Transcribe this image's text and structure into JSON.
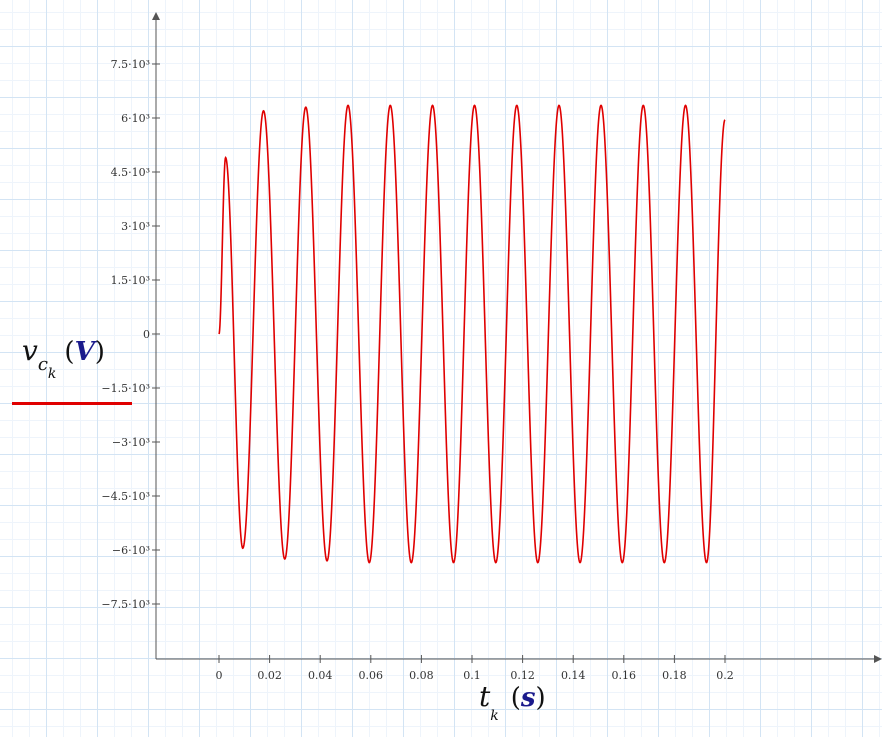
{
  "chart_data": {
    "type": "line",
    "xlabel": {
      "var": "t",
      "sub": "k",
      "unit": "s"
    },
    "ylabel": {
      "var": "v",
      "sub1": "c",
      "sub2": "k",
      "unit": "V"
    },
    "xlim": [
      -0.02,
      0.22
    ],
    "ylim": [
      -9000,
      9000
    ],
    "x_ticks": [
      0,
      0.02,
      0.04,
      0.06,
      0.08,
      0.1,
      0.12,
      0.14,
      0.16,
      0.18,
      0.2
    ],
    "x_tick_labels": [
      "0",
      "0.02",
      "0.04",
      "0.06",
      "0.08",
      "0.1",
      "0.12",
      "0.14",
      "0.16",
      "0.18",
      "0.2"
    ],
    "y_ticks": [
      -7500,
      -6000,
      -4500,
      -3000,
      -1500,
      0,
      1500,
      3000,
      4500,
      6000,
      7500
    ],
    "y_tick_labels": [
      "−7.5·10³",
      "−6·10³",
      "−4.5·10³",
      "−3·10³",
      "−1.5·10³",
      "0",
      "1.5·10³",
      "3·10³",
      "4.5·10³",
      "6·10³",
      "7.5·10³"
    ],
    "series": [
      {
        "color": "#e00000",
        "x": [
          0,
          0.0026,
          0.0094,
          0.0176,
          0.026,
          0.0343,
          0.0427,
          0.051,
          0.0594,
          0.0677,
          0.076,
          0.0844,
          0.0927,
          0.101,
          0.1094,
          0.1177,
          0.126,
          0.1344,
          0.1427,
          0.151,
          0.1594,
          0.1677,
          0.176,
          0.1844,
          0.1927,
          0.2
        ],
        "y": [
          0,
          4900,
          -5950,
          6200,
          -6250,
          6300,
          -6300,
          6350,
          -6350,
          6350,
          -6350,
          6350,
          -6350,
          6350,
          -6350,
          6350,
          -6350,
          6350,
          -6350,
          6350,
          -6350,
          6350,
          -6350,
          6350,
          -6350,
          5950
        ]
      }
    ],
    "grid": true,
    "legend": "left"
  }
}
